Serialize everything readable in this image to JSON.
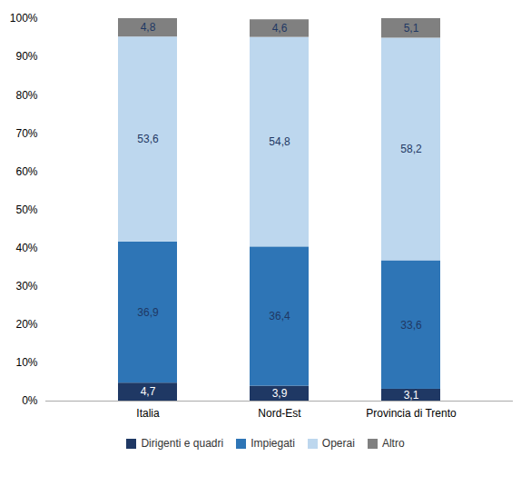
{
  "chart_data": {
    "type": "bar",
    "stacked": true,
    "categories": [
      "Italia",
      "Nord-Est",
      "Provincia di Trento"
    ],
    "series": [
      {
        "name": "Dirigenti e quadri",
        "color": "#1F3864",
        "values": [
          4.7,
          3.9,
          3.1
        ],
        "value_labels": [
          "4,7",
          "3,9",
          "3,1"
        ]
      },
      {
        "name": "Impiegati",
        "color": "#2E75B6",
        "values": [
          36.9,
          36.4,
          33.6
        ],
        "value_labels": [
          "36,9",
          "36,4",
          "33,6"
        ]
      },
      {
        "name": "Operai",
        "color": "#BDD7EE",
        "values": [
          53.6,
          54.8,
          58.2
        ],
        "value_labels": [
          "53,6",
          "54,8",
          "58,2"
        ]
      },
      {
        "name": "Altro",
        "color": "#808080",
        "values": [
          4.8,
          4.6,
          5.1
        ],
        "value_labels": [
          "4,8",
          "4,6",
          "5,1"
        ]
      }
    ],
    "ylim": [
      0,
      100
    ],
    "yticks": [
      {
        "value": 0,
        "label": "0%"
      },
      {
        "value": 10,
        "label": "10%"
      },
      {
        "value": 20,
        "label": "20%"
      },
      {
        "value": 30,
        "label": "30%"
      },
      {
        "value": 40,
        "label": "40%"
      },
      {
        "value": 50,
        "label": "50%"
      },
      {
        "value": 60,
        "label": "60%"
      },
      {
        "value": 70,
        "label": "70%"
      },
      {
        "value": 80,
        "label": "80%"
      },
      {
        "value": 90,
        "label": "90%"
      },
      {
        "value": 100,
        "label": "100%"
      }
    ],
    "grid": false,
    "legend": "bottom",
    "data_labels": true
  }
}
